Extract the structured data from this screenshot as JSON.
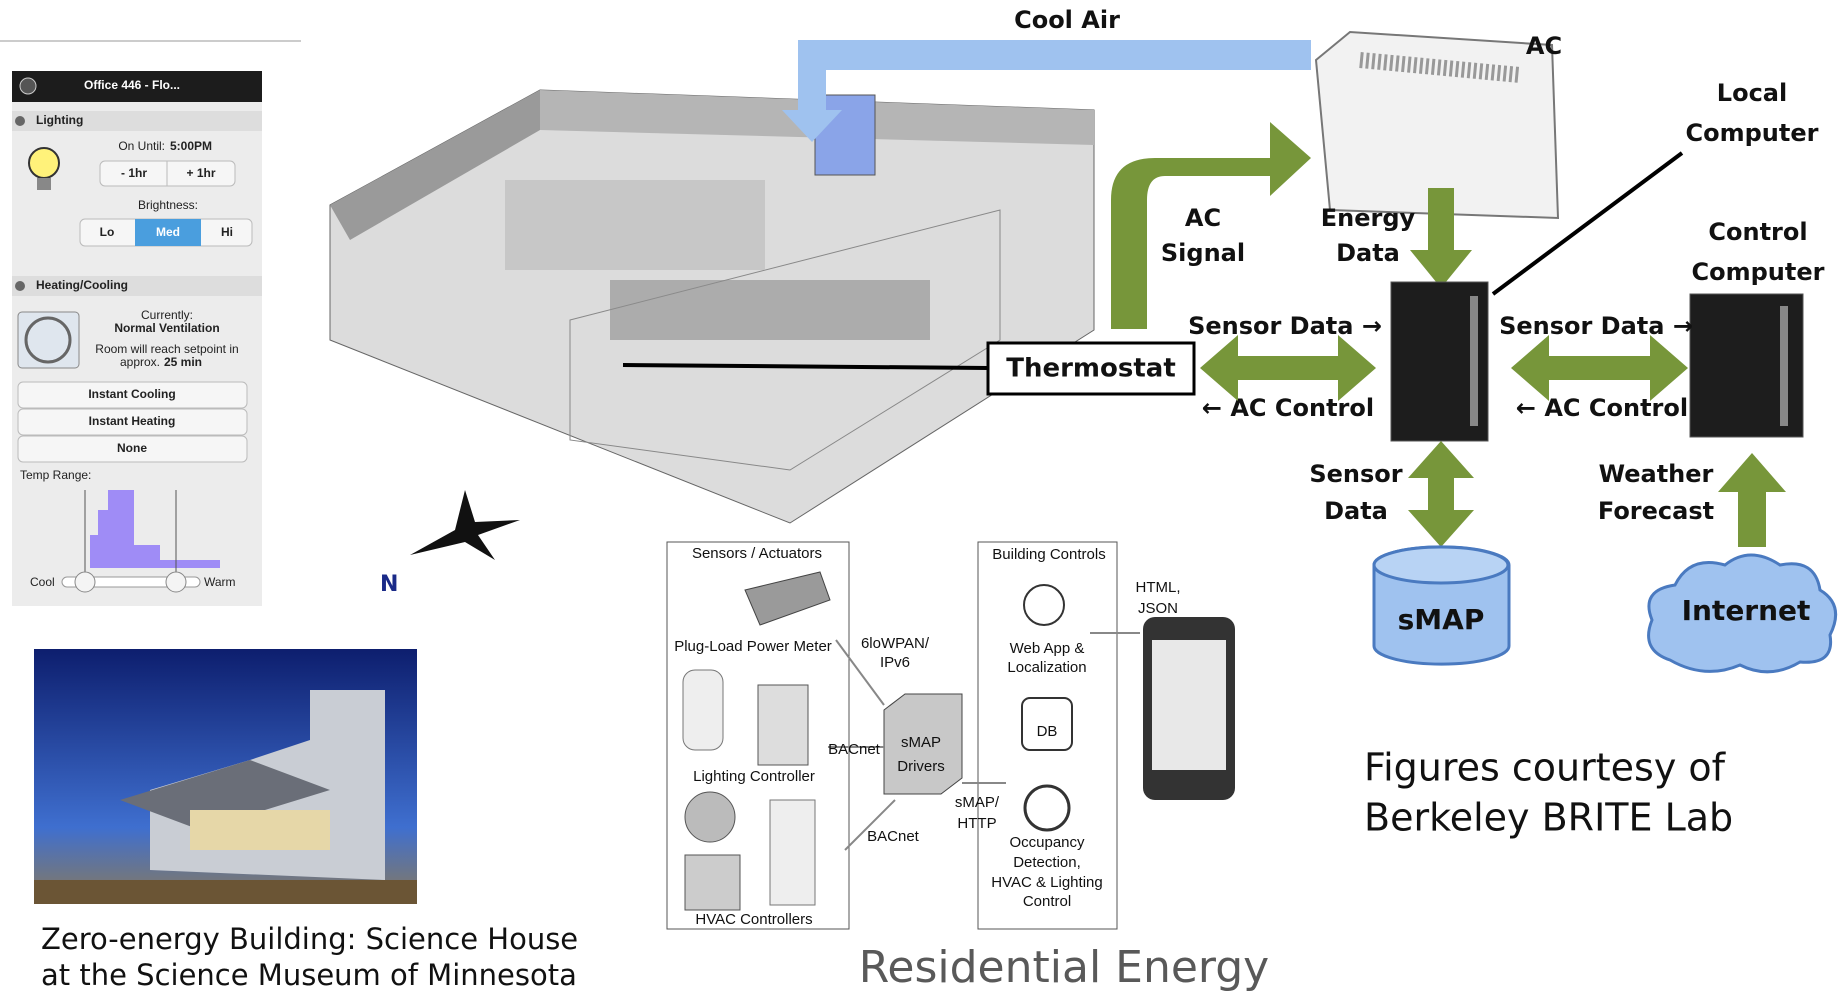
{
  "phone_app": {
    "header": "Office 446 - Flo...",
    "lighting": {
      "title": "Lighting",
      "on_until_label": "On Until:",
      "on_until_time": "5:00PM",
      "buttons": [
        "- 1hr",
        "+ 1hr"
      ],
      "brightness_label": "Brightness:",
      "levels": [
        "Lo",
        "Med",
        "Hi"
      ]
    },
    "heating_cooling": {
      "title": "Heating/Cooling",
      "currently_label": "Currently:",
      "currently_value": "Normal Ventilation",
      "setpoint_line1": "Room will reach setpoint in",
      "setpoint_line2": "approx.",
      "setpoint_time": "25 min",
      "buttons": [
        "Instant Cooling",
        "Instant Heating",
        "None"
      ],
      "temp_range_label": "Temp Range:",
      "slider_min": "Cool",
      "slider_max": "Warm"
    }
  },
  "photo_caption": [
    "Zero-energy Building: Science House",
    "at the Science Museum of Minnesota"
  ],
  "ac_diagram": {
    "cool_air": "Cool Air",
    "ac": "AC",
    "local_computer": [
      "Local",
      "Computer"
    ],
    "ac_signal": [
      "AC",
      "Signal"
    ],
    "energy_data": [
      "Energy",
      "Data"
    ],
    "control_computer": [
      "Control",
      "Computer"
    ],
    "sensor_data_right": "Sensor Data →",
    "ac_control_left": "← AC Control",
    "thermostat": "Thermostat",
    "sensor_data": [
      "Sensor",
      "Data"
    ],
    "weather_forecast": [
      "Weather",
      "Forecast"
    ],
    "smap": "sMAP",
    "internet": "Internet"
  },
  "credit": [
    "Figures courtesy of",
    "Berkeley BRITE Lab"
  ],
  "smap_diagram": {
    "sensors_title": "Sensors / Actuators",
    "plug_load": "Plug-Load Power Meter",
    "lighting_controller": "Lighting Controller",
    "hvac_controllers": "HVAC Controllers",
    "link_6lowpan": [
      "6loWPAN/",
      "IPv6"
    ],
    "bacnet": "BACnet",
    "drivers": [
      "sMAP",
      "Drivers"
    ],
    "smap_http": [
      "sMAP/",
      "HTTP"
    ],
    "controls_title": "Building Controls",
    "html_json": [
      "HTML,",
      "JSON"
    ],
    "web_app": [
      "Web App &",
      "Localization"
    ],
    "db": "DB",
    "occupancy": [
      "Occupancy",
      "Detection,",
      "HVAC & Lighting",
      "Control"
    ]
  },
  "title": "Residential Energy"
}
